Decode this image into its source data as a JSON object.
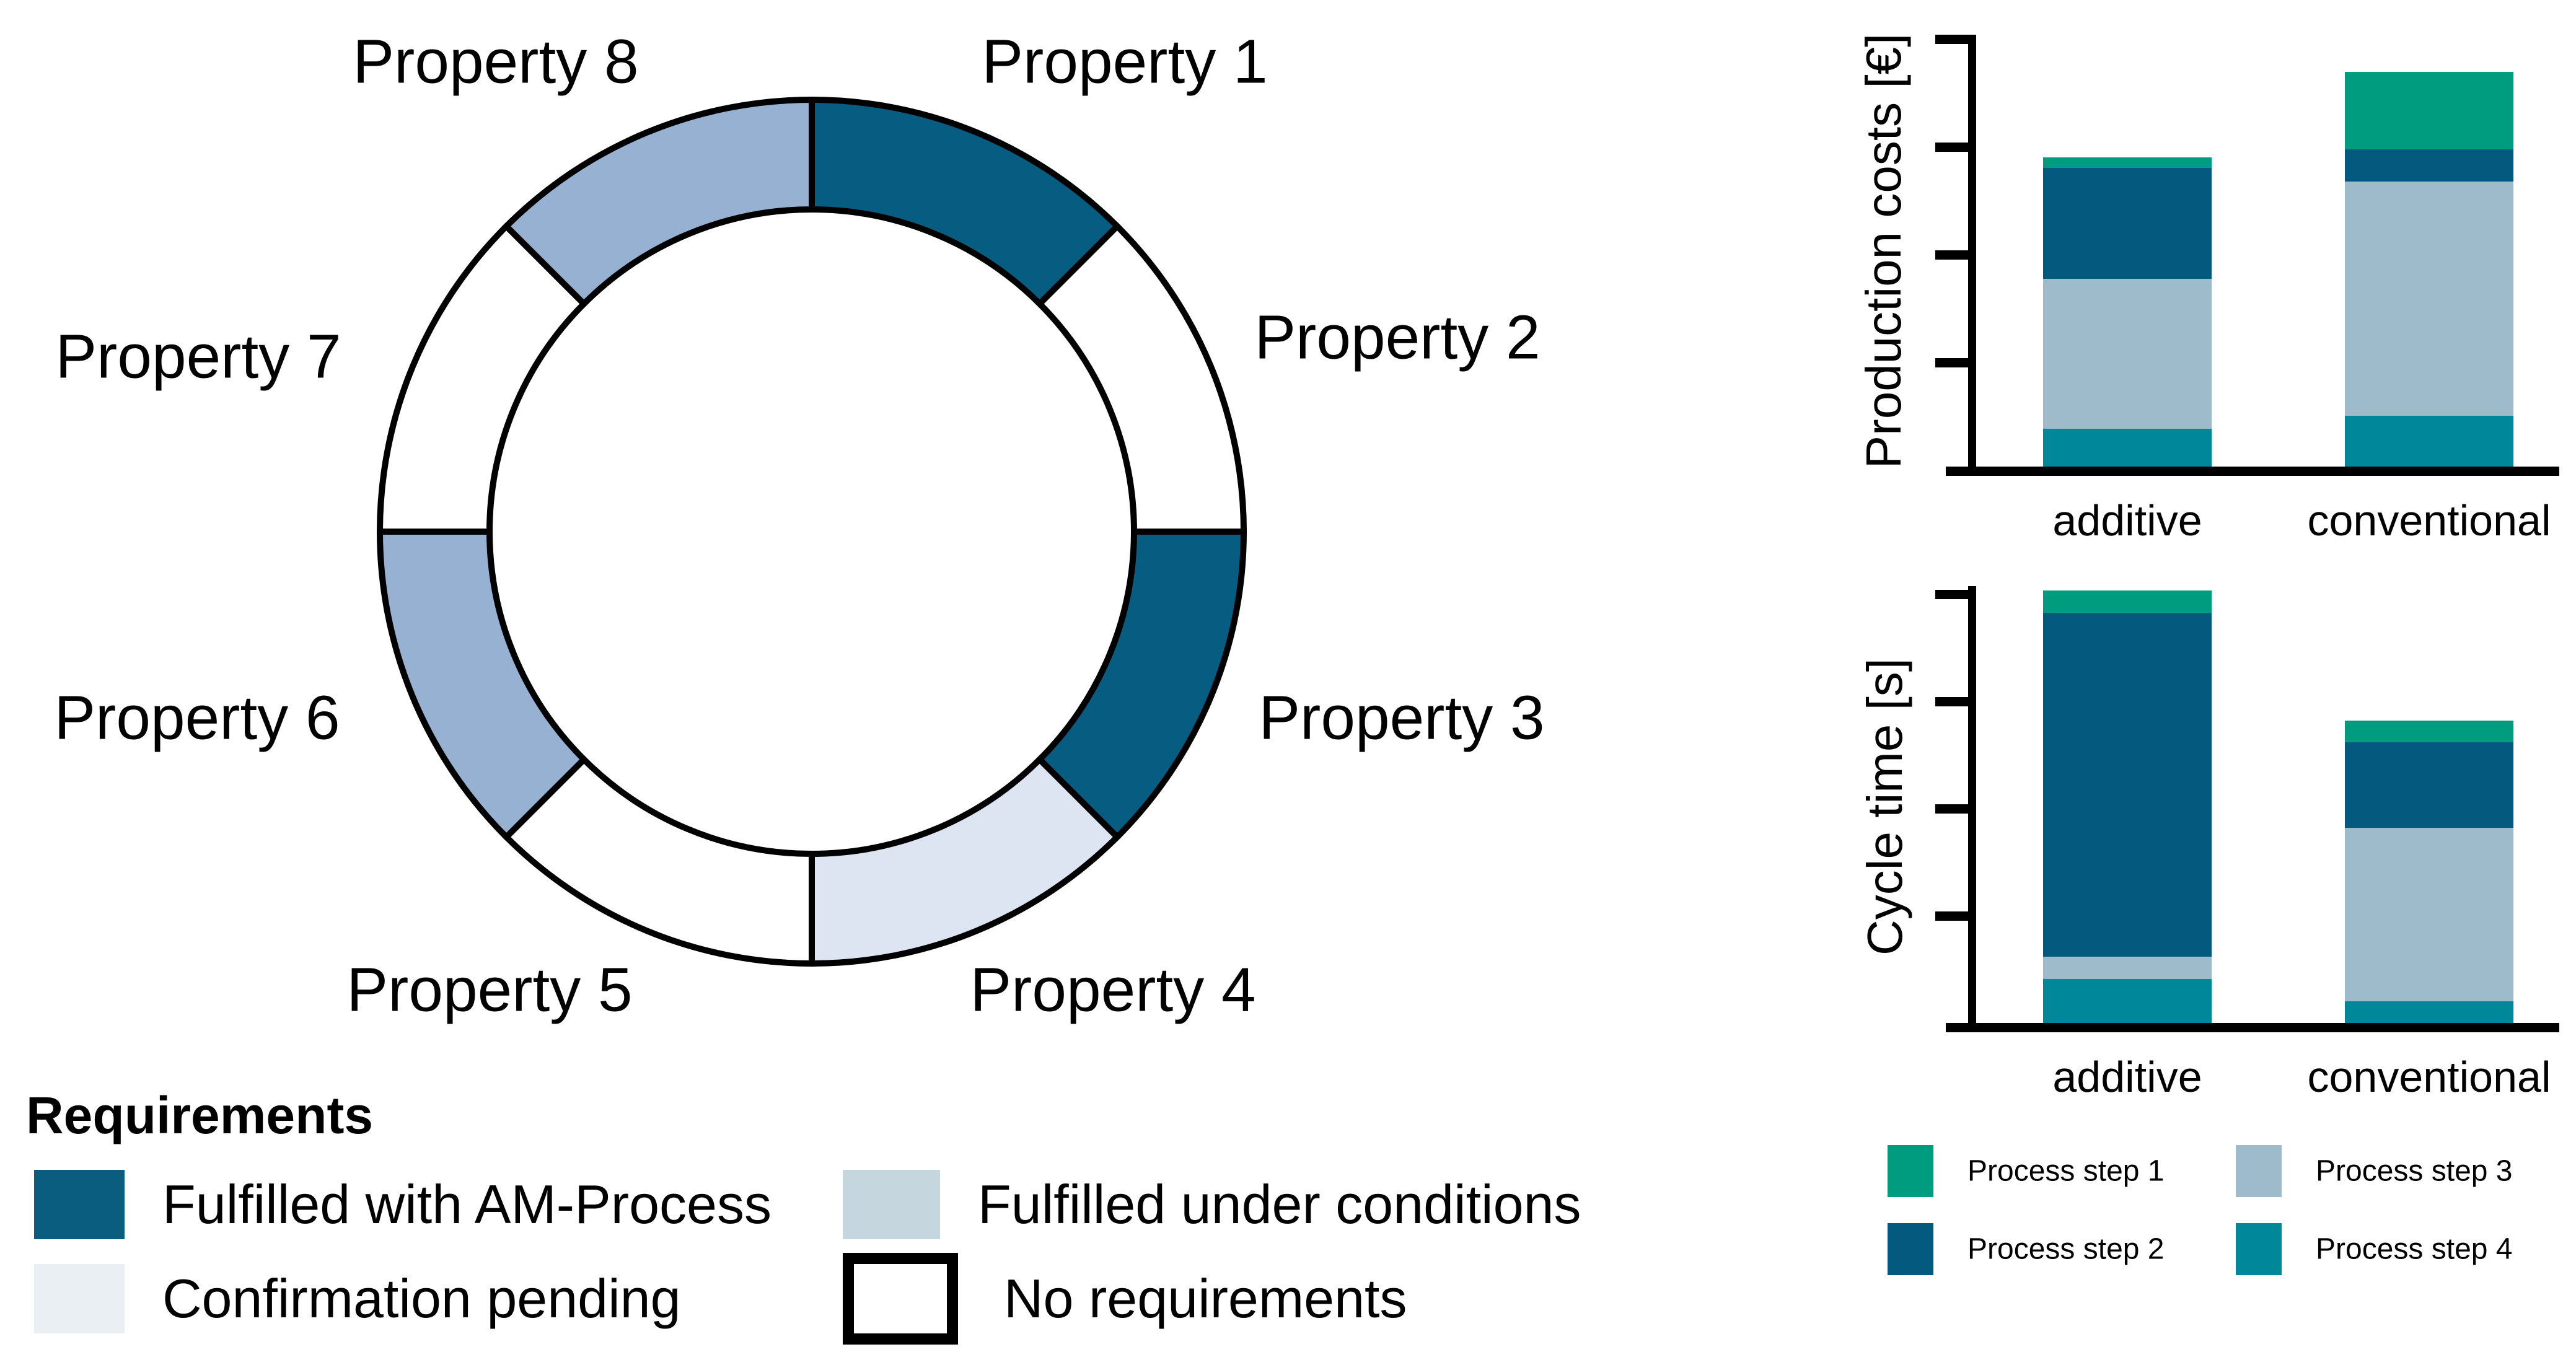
{
  "donut": {
    "properties": [
      {
        "label": "Property 1",
        "status": "fulfilled"
      },
      {
        "label": "Property 2",
        "status": "none"
      },
      {
        "label": "Property 3",
        "status": "fulfilled"
      },
      {
        "label": "Property 4",
        "status": "pending"
      },
      {
        "label": "Property 5",
        "status": "none"
      },
      {
        "label": "Property 6",
        "status": "conditions"
      },
      {
        "label": "Property 7",
        "status": "none"
      },
      {
        "label": "Property 8",
        "status": "conditions"
      }
    ],
    "status_colors": {
      "fulfilled": "#075D81",
      "conditions": "#97B1D3",
      "pending": "#DCE5F1",
      "none": "#FFFFFF"
    },
    "outline_color": "#000000"
  },
  "requirements_legend": {
    "title": "Requirements",
    "items": [
      {
        "label": "Fulfilled with AM-Process",
        "color": "#0B5D80",
        "border": false
      },
      {
        "label": "Fulfilled under conditions",
        "color": "#C5D6DF",
        "border": false
      },
      {
        "label": "Confirmation pending",
        "color": "#EAEFF3",
        "border": false
      },
      {
        "label": "No requirements",
        "color": "#FFFFFF",
        "border": true
      }
    ]
  },
  "process_legend": {
    "items": [
      {
        "label": "Process step 1",
        "color": "#009C7F"
      },
      {
        "label": "Process step 2",
        "color": "#035A7E"
      },
      {
        "label": "Process step 3",
        "color": "#9DBBCA"
      },
      {
        "label": "Process step 4",
        "color": "#008799"
      }
    ]
  },
  "chart_data": [
    {
      "type": "bar",
      "stacked": true,
      "ylabel": "Production costs [€]",
      "categories": [
        "additive",
        "conventional"
      ],
      "series": [
        {
          "name": "Process step 1",
          "color": "#009C7F",
          "values": [
            0.1,
            0.72
          ]
        },
        {
          "name": "Process step 2",
          "color": "#035A7E",
          "values": [
            1.03,
            0.3
          ]
        },
        {
          "name": "Process step 3",
          "color": "#9DBBCA",
          "values": [
            1.39,
            2.17
          ]
        },
        {
          "name": "Process step 4",
          "color": "#008799",
          "values": [
            0.35,
            0.47
          ]
        }
      ],
      "stack_order_bottom_to_top": [
        "Process step 4",
        "Process step 3",
        "Process step 2",
        "Process step 1"
      ],
      "totals": [
        2.87,
        3.66
      ],
      "ylim": [
        0,
        4.05
      ],
      "yticks": [
        1,
        2,
        3,
        4
      ],
      "ytick_labels_visible": false,
      "grid": false,
      "legend_position": "below-second-chart"
    },
    {
      "type": "bar",
      "stacked": true,
      "ylabel": "Cycle time [s]",
      "categories": [
        "additive",
        "conventional"
      ],
      "series": [
        {
          "name": "Process step 1",
          "color": "#009C7F",
          "values": [
            0.21,
            0.2
          ]
        },
        {
          "name": "Process step 2",
          "color": "#035A7E",
          "values": [
            3.21,
            0.8
          ]
        },
        {
          "name": "Process step 3",
          "color": "#9DBBCA",
          "values": [
            0.21,
            1.62
          ]
        },
        {
          "name": "Process step 4",
          "color": "#008799",
          "values": [
            0.41,
            0.2
          ]
        }
      ],
      "stack_order_bottom_to_top": [
        "Process step 4",
        "Process step 3",
        "Process step 2",
        "Process step 1"
      ],
      "totals": [
        4.04,
        2.82
      ],
      "ylim": [
        0,
        4.05
      ],
      "yticks": [
        1,
        2,
        3,
        4
      ],
      "ytick_labels_visible": false,
      "grid": false,
      "legend_position": "below-second-chart"
    }
  ]
}
